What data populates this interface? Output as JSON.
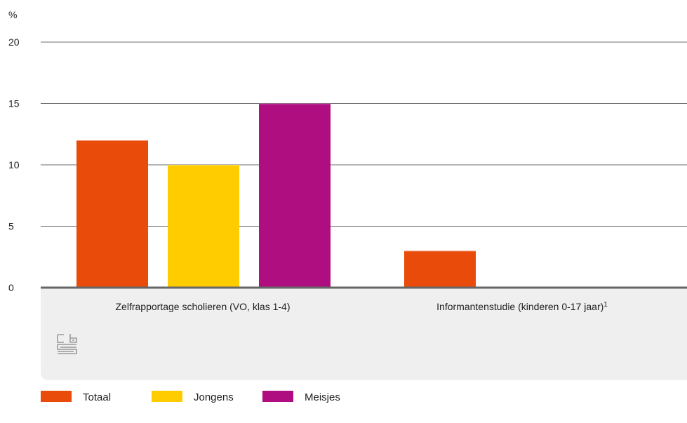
{
  "chart_data": {
    "type": "bar",
    "title": "",
    "xlabel": "",
    "ylabel": "%",
    "ylim": [
      0,
      20
    ],
    "yticks": [
      0,
      5,
      10,
      15,
      20
    ],
    "grid": true,
    "legend_position": "bottom-left",
    "categories": [
      {
        "label": "Zelfrapportage scholieren (VO, klas 1-4)",
        "footnote": ""
      },
      {
        "label": "Informantenstudie (kinderen 0-17 jaar)",
        "footnote": "1"
      }
    ],
    "series": [
      {
        "name": "Totaal",
        "color": "#e94c0a",
        "values": [
          12,
          3
        ]
      },
      {
        "name": "Jongens",
        "color": "#ffcc00",
        "values": [
          10,
          null
        ]
      },
      {
        "name": "Meisjes",
        "color": "#af0e80",
        "values": [
          15,
          null
        ]
      }
    ]
  },
  "logo": {
    "icon": "cbs-logo-icon",
    "color": "#9a9a9a"
  }
}
